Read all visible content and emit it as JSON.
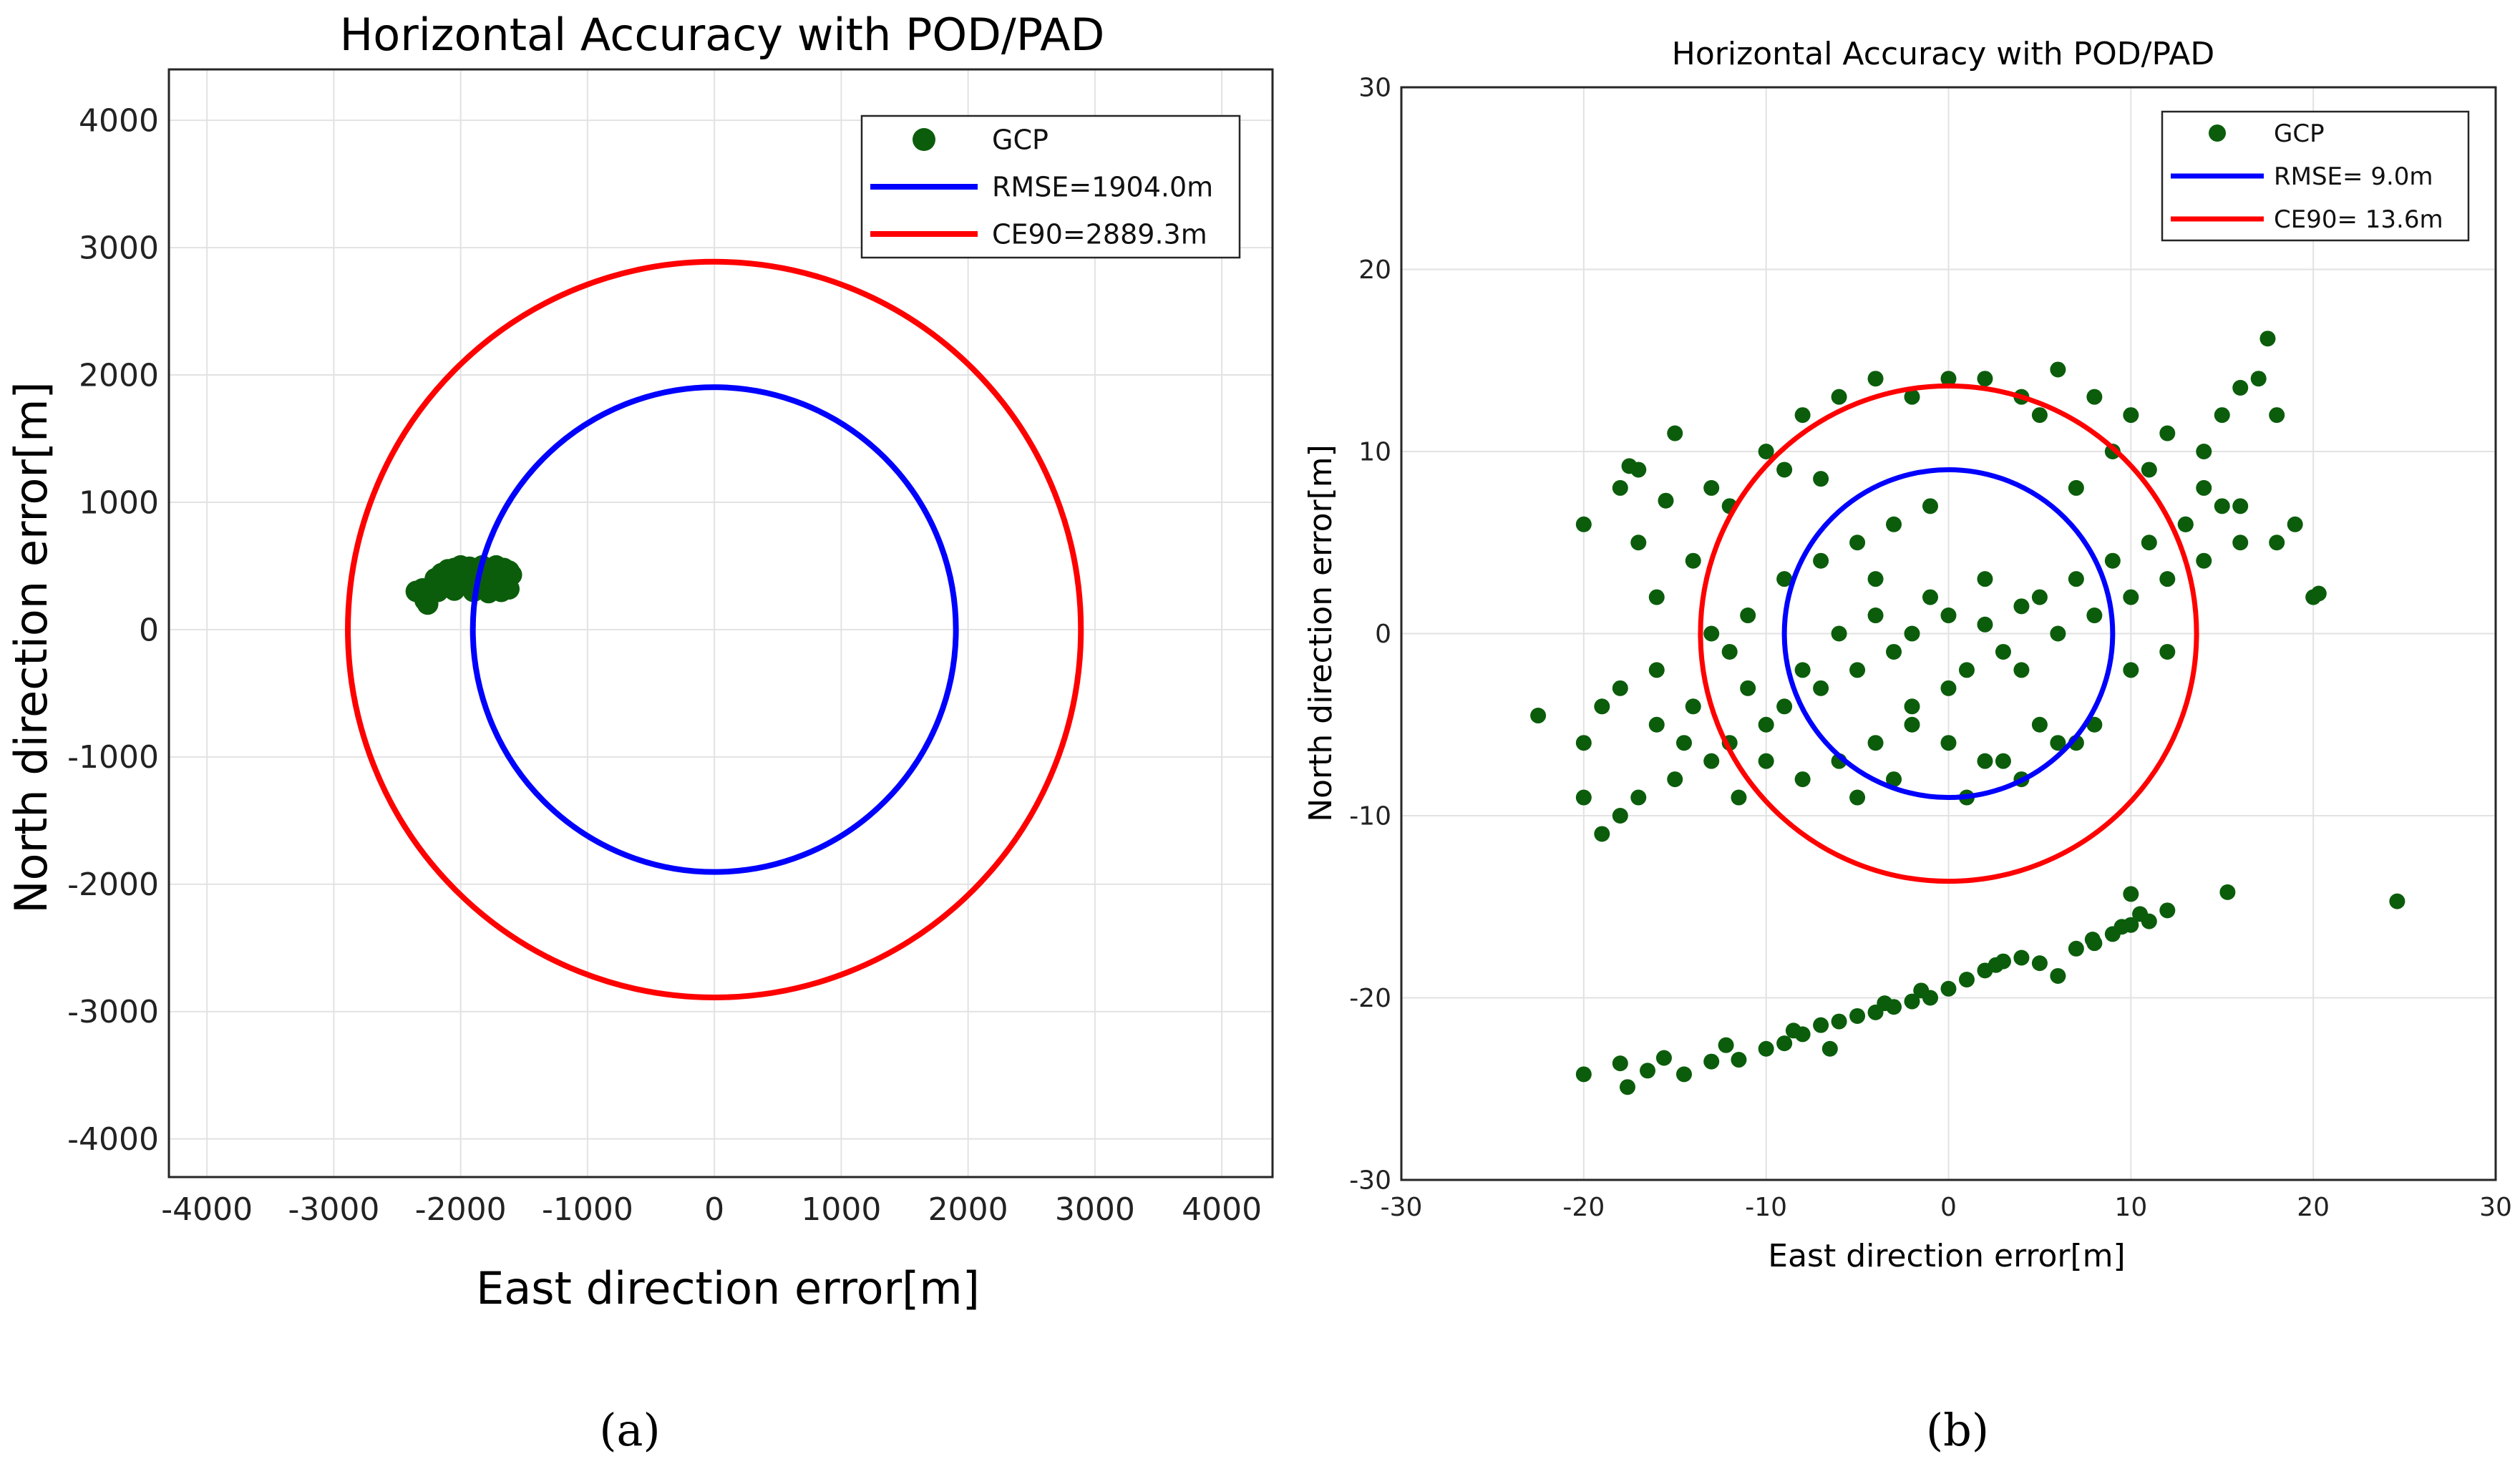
{
  "chart_data": [
    {
      "type": "scatter",
      "title": "Horizontal Accuracy with POD/PAD",
      "xlabel": "East direction error[m]",
      "ylabel": "North direction error[m]",
      "xlim": [
        -4300,
        4400
      ],
      "ylim": [
        -4300,
        4400
      ],
      "xticks": [
        -4000,
        -3000,
        -2000,
        -1000,
        0,
        1000,
        2000,
        3000,
        4000
      ],
      "yticks": [
        -4000,
        -3000,
        -2000,
        -1000,
        0,
        1000,
        2000,
        3000,
        4000
      ],
      "grid": true,
      "legend_position": "top-right",
      "colors": {
        "gcp": "#0b5d0b",
        "rmse": "#0000ff",
        "ce90": "#ff0000"
      },
      "legend": {
        "gcp": "GCP",
        "rmse": "RMSE=1904.0m",
        "ce90": "CE90=2889.3m"
      },
      "circles": {
        "rmse_radius": 1904.0,
        "ce90_radius": 2889.3,
        "center": [
          0,
          0
        ]
      },
      "series": [
        {
          "name": "GCP",
          "points": [
            [
              -2350,
              300
            ],
            [
              -2300,
              320
            ],
            [
              -2280,
              230
            ],
            [
              -2260,
              200
            ],
            [
              -2250,
              260
            ],
            [
              -2220,
              350
            ],
            [
              -2200,
              400
            ],
            [
              -2180,
              300
            ],
            [
              -2150,
              440
            ],
            [
              -2120,
              380
            ],
            [
              -2100,
              470
            ],
            [
              -2080,
              410
            ],
            [
              -2050,
              480
            ],
            [
              -2020,
              350
            ],
            [
              -2000,
              500
            ],
            [
              -1980,
              430
            ],
            [
              -1950,
              360
            ],
            [
              -1930,
              490
            ],
            [
              -1900,
              410
            ],
            [
              -1880,
              470
            ],
            [
              -1850,
              330
            ],
            [
              -1830,
              500
            ],
            [
              -1800,
              420
            ],
            [
              -1780,
              290
            ],
            [
              -1760,
              470
            ],
            [
              -1740,
              360
            ],
            [
              -1720,
              500
            ],
            [
              -1700,
              430
            ],
            [
              -1680,
              300
            ],
            [
              -1660,
              480
            ],
            [
              -1640,
              390
            ],
            [
              -1620,
              460
            ],
            [
              -1600,
              430
            ],
            [
              -1620,
              320
            ],
            [
              -1700,
              340
            ],
            [
              -1900,
              300
            ],
            [
              -2050,
              310
            ],
            [
              -2150,
              330
            ],
            [
              -1860,
              380
            ],
            [
              -1760,
              400
            ]
          ]
        }
      ],
      "panel_label": "(a)"
    },
    {
      "type": "scatter",
      "title": "Horizontal Accuracy with POD/PAD",
      "xlabel": "East direction error[m]",
      "ylabel": "North direction error[m]",
      "xlim": [
        -30,
        30
      ],
      "ylim": [
        -30,
        30
      ],
      "xticks": [
        -30,
        -20,
        -10,
        0,
        10,
        20,
        30
      ],
      "yticks": [
        -30,
        -20,
        -10,
        0,
        10,
        20,
        30
      ],
      "grid": true,
      "legend_position": "top-right",
      "colors": {
        "gcp": "#0b5d0b",
        "rmse": "#0000ff",
        "ce90": "#ff0000"
      },
      "legend": {
        "gcp": "GCP",
        "rmse": "RMSE=  9.0m",
        "ce90": "CE90= 13.6m"
      },
      "circles": {
        "rmse_radius": 9.0,
        "ce90_radius": 13.6,
        "center": [
          0,
          0
        ]
      },
      "series": [
        {
          "name": "GCP",
          "points": [
            [
              -3,
              -1
            ],
            [
              -2,
              0
            ],
            [
              0,
              1
            ],
            [
              2,
              0.5
            ],
            [
              4,
              1.5
            ],
            [
              -5,
              -2
            ],
            [
              -7,
              -3
            ],
            [
              -9,
              -4
            ],
            [
              5,
              2
            ],
            [
              7,
              3
            ],
            [
              -4,
              1
            ],
            [
              1,
              -2
            ],
            [
              3,
              -1
            ],
            [
              -1,
              2
            ],
            [
              6,
              0
            ],
            [
              -6,
              0
            ],
            [
              8,
              1
            ],
            [
              -8,
              -2
            ],
            [
              0,
              -3
            ],
            [
              2,
              3
            ],
            [
              -2,
              -4
            ],
            [
              4,
              -2
            ],
            [
              -4,
              3
            ],
            [
              9,
              4
            ],
            [
              -10,
              -5
            ],
            [
              10,
              2
            ],
            [
              -11,
              -3
            ],
            [
              11,
              5
            ],
            [
              -12,
              -6
            ],
            [
              12,
              3
            ],
            [
              -13,
              -7
            ],
            [
              13,
              6
            ],
            [
              -14,
              -4
            ],
            [
              14,
              4
            ],
            [
              -15,
              -8
            ],
            [
              15,
              7
            ],
            [
              -16,
              -5
            ],
            [
              16,
              5
            ],
            [
              -17,
              -9
            ],
            [
              -18,
              -10
            ],
            [
              -19,
              -11
            ],
            [
              -20,
              -9
            ],
            [
              -22.5,
              -4.5
            ],
            [
              -20,
              -6
            ],
            [
              -18,
              -3
            ],
            [
              -16,
              2
            ],
            [
              -14,
              4
            ],
            [
              -15,
              11
            ],
            [
              -17,
              9
            ],
            [
              -13,
              8
            ],
            [
              -10,
              10
            ],
            [
              -8,
              12
            ],
            [
              -6,
              13
            ],
            [
              -4,
              14
            ],
            [
              -2,
              13
            ],
            [
              0,
              14
            ],
            [
              2,
              14
            ],
            [
              4,
              13
            ],
            [
              5,
              12
            ],
            [
              6,
              14.5
            ],
            [
              8,
              13
            ],
            [
              10,
              12
            ],
            [
              12,
              11
            ],
            [
              14,
              10
            ],
            [
              15,
              12
            ],
            [
              17,
              14
            ],
            [
              17.5,
              16.2
            ],
            [
              16,
              13.5
            ],
            [
              18,
              12
            ],
            [
              19,
              6
            ],
            [
              20,
              2
            ],
            [
              18,
              5
            ],
            [
              16,
              7
            ],
            [
              14,
              8
            ],
            [
              13,
              6
            ],
            [
              11,
              9
            ],
            [
              9,
              10
            ],
            [
              7,
              8
            ],
            [
              -1,
              7
            ],
            [
              -3,
              6
            ],
            [
              -5,
              5
            ],
            [
              -7,
              4
            ],
            [
              -9,
              3
            ],
            [
              -11,
              1
            ],
            [
              -12,
              -1
            ],
            [
              -10,
              -7
            ],
            [
              -8,
              -8
            ],
            [
              -6,
              -7
            ],
            [
              -4,
              -6
            ],
            [
              -2,
              -5
            ],
            [
              0,
              -6
            ],
            [
              2,
              -7
            ],
            [
              4,
              -8
            ],
            [
              6,
              -6
            ],
            [
              8,
              -5
            ],
            [
              -13,
              0
            ],
            [
              -16,
              -2
            ],
            [
              -19,
              -4
            ],
            [
              -18,
              8
            ],
            [
              -20,
              6
            ],
            [
              -17,
              5
            ],
            [
              -12,
              7
            ],
            [
              20.3,
              2.2
            ],
            [
              12,
              -1
            ],
            [
              10,
              -2
            ],
            [
              -5,
              -9
            ],
            [
              -3,
              -8
            ],
            [
              1,
              -9
            ],
            [
              3,
              -7
            ],
            [
              5,
              -5
            ],
            [
              7,
              -6
            ],
            [
              -17.5,
              9.2
            ],
            [
              -15.5,
              7.3
            ],
            [
              -9,
              9
            ],
            [
              -7,
              8.5
            ],
            [
              -14.5,
              -6
            ],
            [
              -11.5,
              -9
            ],
            [
              -20,
              -24.2
            ],
            [
              -17.6,
              -24.9
            ],
            [
              -16.5,
              -24
            ],
            [
              -14.5,
              -24.2
            ],
            [
              -13,
              -23.5
            ],
            [
              -11.5,
              -23.4
            ],
            [
              -10,
              -22.8
            ],
            [
              -9,
              -22.5
            ],
            [
              -8,
              -22
            ],
            [
              -7,
              -21.5
            ],
            [
              -6,
              -21.3
            ],
            [
              -5,
              -21
            ],
            [
              -4,
              -20.8
            ],
            [
              -3,
              -20.5
            ],
            [
              -2,
              -20.2
            ],
            [
              -1,
              -20
            ],
            [
              0,
              -19.5
            ],
            [
              1,
              -19
            ],
            [
              2,
              -18.5
            ],
            [
              3,
              -18
            ],
            [
              4,
              -17.8
            ],
            [
              5,
              -18.1
            ],
            [
              6,
              -18.8
            ],
            [
              7,
              -17.3
            ],
            [
              8,
              -17
            ],
            [
              9,
              -16.5
            ],
            [
              10,
              -16
            ],
            [
              10.5,
              -15.4
            ],
            [
              11,
              -15.8
            ],
            [
              12,
              -15.2
            ],
            [
              10,
              -14.3
            ],
            [
              15.3,
              -14.2
            ],
            [
              24.6,
              -14.7
            ],
            [
              -18,
              -23.6
            ],
            [
              -15.6,
              -23.3
            ],
            [
              -12.2,
              -22.6
            ],
            [
              -8.5,
              -21.8
            ],
            [
              -6.5,
              -22.8
            ],
            [
              -3.5,
              -20.3
            ],
            [
              -1.5,
              -19.6
            ],
            [
              2.6,
              -18.2
            ],
            [
              7.9,
              -16.8
            ],
            [
              9.5,
              -16.1
            ]
          ]
        }
      ],
      "panel_label": "(b)"
    }
  ]
}
